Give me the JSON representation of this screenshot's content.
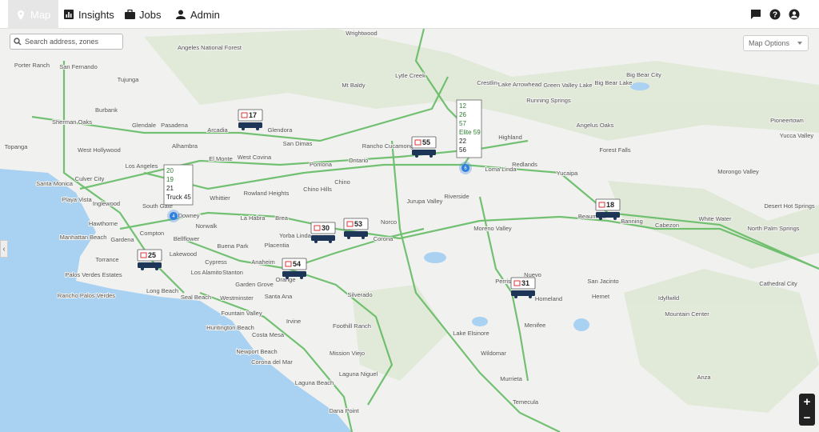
{
  "nav": {
    "items": [
      "Map",
      "Insights",
      "Jobs",
      "Admin"
    ],
    "active": 0
  },
  "search": {
    "placeholder": "Search address, zones"
  },
  "map_options": "Map Options",
  "zoom": [
    "+",
    "−"
  ],
  "vehicles": [
    17,
    55,
    18,
    30,
    53,
    54,
    25,
    31
  ],
  "clusters": [
    {
      "count": 4,
      "items": [
        {
          "label": "20",
          "color": "#2e7d32"
        },
        {
          "label": "19",
          "color": "#2e7d32"
        },
        {
          "label": "21",
          "color": "#222222"
        },
        {
          "label": "Truck 45",
          "color": "#222222"
        }
      ]
    },
    {
      "count": 6,
      "items": [
        {
          "label": "12",
          "color": "#2e7d32"
        },
        {
          "label": "26",
          "color": "#2e7d32"
        },
        {
          "label": "57",
          "color": "#2e7d32"
        },
        {
          "label": "Elite 59",
          "color": "#2e7d32"
        },
        {
          "label": "22",
          "color": "#222222"
        },
        {
          "label": "56",
          "color": "#222222"
        }
      ]
    }
  ],
  "places": [
    "Wrightwood",
    "Angeles National Forest",
    "Porter Ranch",
    "San Fernando",
    "Lytle Creek",
    "Crestline",
    "Lake Arrowhead",
    "Green Valley Lake",
    "Big Bear Lake",
    "Big Bear City",
    "Mt Baldy",
    "Tujunga",
    "Burbank",
    "Glendale",
    "Pasadena",
    "Sherman Oaks",
    "Arcadia",
    "Glendora",
    "Running Springs",
    "Angelus Oaks",
    "Pioneertown",
    "Yucca Valley",
    "Topanga",
    "West Hollywood",
    "Alhambra",
    "El Monte",
    "West Covina",
    "San Dimas",
    "Pomona",
    "Rancho Cucamonga",
    "Ontario",
    "Highland",
    "Forest Falls",
    "Los Angeles",
    "Loma Linda",
    "Redlands",
    "Yucaipa",
    "Morongo Valley",
    "Santa Monica",
    "Culver City",
    "Chino Hills",
    "Chino",
    "Rowland Heights",
    "Whittier",
    "Riverside",
    "Jurupa Valley",
    "Desert Hot Springs",
    "Playa Vista",
    "Inglewood",
    "South Gate",
    "Downey",
    "Norwalk",
    "La Habra",
    "Brea",
    "Norco",
    "Moreno Valley",
    "White Water",
    "Hawthorne",
    "Manhattan Beach",
    "Gardena",
    "Compton",
    "Bellflower",
    "Buena Park",
    "Yorba Linda",
    "Corona",
    "Beaumont",
    "Banning",
    "Cabezon",
    "North Palm Springs",
    "Torrance",
    "Lakewood",
    "Cypress",
    "Anaheim",
    "Placentia",
    "Palos Verdes Estates",
    "Long Beach",
    "Los Alamitos",
    "Stanton",
    "Garden Grove",
    "Orange",
    "Perris",
    "Nuevo",
    "San Jacinto",
    "Cathedral City",
    "Rancho Palos Verdes",
    "Seal Beach",
    "Westminster",
    "Santa Ana",
    "Silverado",
    "Homeland",
    "Hemet",
    "Idyllwild",
    "Huntington Beach",
    "Fountain Valley",
    "Costa Mesa",
    "Irvine",
    "Foothill Ranch",
    "Lake Elsinore",
    "Menifee",
    "Mountain Center",
    "Newport Beach",
    "Mission Viejo",
    "Wildomar",
    "Corona del Mar",
    "Laguna Niguel",
    "Murrieta",
    "Anza",
    "Dana Point",
    "Temecula",
    "Laguna Beach"
  ]
}
